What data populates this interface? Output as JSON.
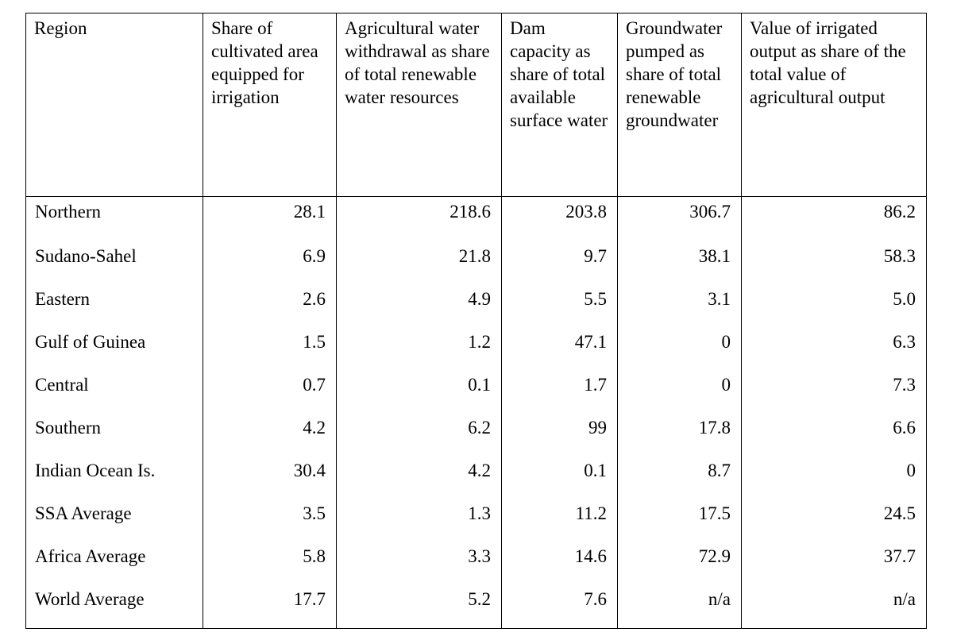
{
  "table": {
    "headers": [
      "Region",
      "Share of cultivated area equipped for irrigation",
      "Agricultural water withdrawal as share of total renewable water resources",
      "Dam capacity as share of total available surface water",
      "Groundwater pumped as share of total renewable groundwater",
      "Value of irrigated output as share of the total value of agricultural output"
    ],
    "rows": [
      [
        "Northern",
        "28.1",
        "218.6",
        "203.8",
        "306.7",
        "86.2"
      ],
      [
        "Sudano-Sahel",
        "6.9",
        "21.8",
        "9.7",
        "38.1",
        "58.3"
      ],
      [
        "Eastern",
        "2.6",
        "4.9",
        "5.5",
        "3.1",
        "5.0"
      ],
      [
        "Gulf of Guinea",
        "1.5",
        "1.2",
        "47.1",
        "0",
        "6.3"
      ],
      [
        "Central",
        "0.7",
        "0.1",
        "1.7",
        "0",
        "7.3"
      ],
      [
        "Southern",
        "4.2",
        "6.2",
        "99",
        "17.8",
        "6.6"
      ],
      [
        "Indian Ocean Is.",
        "30.4",
        "4.2",
        "0.1",
        "8.7",
        "0"
      ],
      [
        "SSA Average",
        "3.5",
        "1.3",
        "11.2",
        "17.5",
        "24.5"
      ],
      [
        "Africa Average",
        "5.8",
        "3.3",
        "14.6",
        "72.9",
        "37.7"
      ],
      [
        "World Average",
        "17.7",
        "5.2",
        "7.6",
        "n/a",
        "n/a"
      ]
    ]
  }
}
